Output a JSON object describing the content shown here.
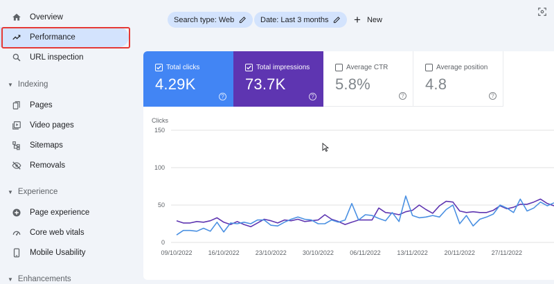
{
  "sidebar": {
    "items": [
      {
        "label": "Overview",
        "icon": "home-icon"
      },
      {
        "label": "Performance",
        "icon": "trending-up-icon",
        "active": true
      },
      {
        "label": "URL inspection",
        "icon": "search-icon"
      }
    ],
    "sections": [
      {
        "title": "Indexing",
        "items": [
          {
            "label": "Pages",
            "icon": "pages-icon"
          },
          {
            "label": "Video pages",
            "icon": "video-pages-icon"
          },
          {
            "label": "Sitemaps",
            "icon": "sitemap-icon"
          },
          {
            "label": "Removals",
            "icon": "eye-off-icon"
          }
        ]
      },
      {
        "title": "Experience",
        "items": [
          {
            "label": "Page experience",
            "icon": "plus-circle-icon"
          },
          {
            "label": "Core web vitals",
            "icon": "gauge-icon"
          },
          {
            "label": "Mobile Usability",
            "icon": "phone-icon"
          }
        ]
      },
      {
        "title": "Enhancements",
        "items": []
      }
    ]
  },
  "filters": {
    "search_type": "Search type: Web",
    "date": "Date: Last 3 months",
    "new_label": "New"
  },
  "metrics": [
    {
      "label": "Total clicks",
      "value": "4.29K",
      "checked": true,
      "color": "#4285f4"
    },
    {
      "label": "Total impressions",
      "value": "73.7K",
      "checked": true,
      "color": "#5e35b1"
    },
    {
      "label": "Average CTR",
      "value": "5.8%",
      "checked": false
    },
    {
      "label": "Average position",
      "value": "4.8",
      "checked": false
    }
  ],
  "chart_data": {
    "type": "line",
    "ylabel": "Clicks",
    "y_ticks": [
      "150",
      "100",
      "50",
      "0"
    ],
    "ylim": [
      0,
      150
    ],
    "x_ticks": [
      "09/10/2022",
      "16/10/2022",
      "23/10/2022",
      "30/10/2022",
      "06/11/2022",
      "13/11/2022",
      "20/11/2022",
      "27/11/2022"
    ],
    "grid": true,
    "series": [
      {
        "name": "Total clicks",
        "color": "#4a90e2",
        "values": [
          10,
          16,
          16,
          15,
          19,
          15,
          27,
          14,
          26,
          25,
          27,
          25,
          30,
          30,
          23,
          22,
          27,
          31,
          34,
          31,
          30,
          25,
          25,
          30,
          27,
          30,
          52,
          30,
          37,
          36,
          32,
          29,
          40,
          28,
          62,
          36,
          33,
          34,
          36,
          34,
          44,
          50,
          25,
          36,
          22,
          31,
          34,
          38,
          50,
          46,
          40,
          58,
          42,
          46,
          54,
          49,
          53
        ]
      },
      {
        "name": "Total impressions",
        "color": "#5e35b1",
        "values": [
          29,
          26,
          26,
          28,
          27,
          29,
          33,
          27,
          24,
          28,
          24,
          21,
          26,
          31,
          29,
          26,
          30,
          29,
          31,
          28,
          29,
          30,
          37,
          31,
          28,
          24,
          27,
          30,
          30,
          30,
          46,
          40,
          39,
          37,
          41,
          43,
          50,
          44,
          39,
          49,
          55,
          54,
          42,
          40,
          41,
          40,
          40,
          43,
          49,
          45,
          47,
          51,
          51,
          54,
          58,
          52,
          49
        ]
      }
    ]
  }
}
